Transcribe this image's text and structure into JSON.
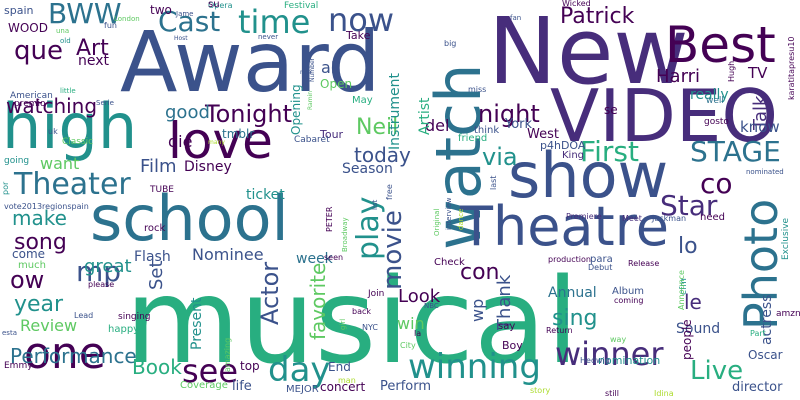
{
  "palette": {
    "dark_purple": "#440154",
    "indigo": "#472d7b",
    "blue": "#3b528b",
    "steel": "#2c728e",
    "teal": "#21918c",
    "green": "#28ae80",
    "light_green": "#5ec962",
    "lime": "#addc30",
    "yellow": "#fde725"
  },
  "words": [
    "Award",
    "New",
    "musical",
    "VIDEO",
    "show",
    "watch",
    "high",
    "love",
    "school",
    "Theatre",
    "Photo",
    "Best",
    "one",
    "Theater",
    "Cast",
    "time",
    "now",
    "winning",
    "winner",
    "Tonight",
    "day",
    "see",
    "Live",
    "STAGE",
    "First",
    "Star",
    "play",
    "movie",
    "Actor",
    "favorite",
    "Patrick",
    "Performance",
    "que",
    "BWW",
    "Art",
    "song",
    "make",
    "watching",
    "mp",
    "ow",
    "year",
    "via",
    "night",
    "Neil",
    "good",
    "today",
    "co",
    "Look",
    "Nominee",
    "Review",
    "Harri",
    "Talk",
    "Book",
    "Thank",
    "con",
    "sing",
    "Film",
    "Disney",
    "ticket",
    "Season",
    "die",
    "Set",
    "great",
    "want",
    "Present",
    "Flash",
    "week",
    "Annual",
    "lo",
    "le",
    "wp",
    "win",
    "Sound",
    "actress",
    "people",
    "director",
    "Oscar",
    "concert",
    "Perform",
    "End",
    "top",
    "life",
    "al",
    "Open",
    "Opening",
    "del",
    "Instrument",
    "York",
    "West",
    "Artist",
    "tmblr",
    "Tour",
    "Cabaret",
    "May",
    "TV",
    "know",
    "really",
    "next",
    "WOOD",
    "spain",
    "American",
    "premio",
    "Classic",
    "going",
    "vote2013regionspain",
    "rock",
    "come",
    "much",
    "please",
    "Lead",
    "singing",
    "happy",
    "Emmy",
    "Coverage",
    "MEJOR",
    "amazing",
    "man",
    "Boy",
    "Check",
    "Join",
    "NYC",
    "City",
    "la",
    "Album",
    "Debut",
    "Release",
    "Meet",
    "Jackman",
    "Premiere",
    "Return",
    "para",
    "production",
    "nomination",
    "story",
    "Idina",
    "still",
    "Hedwig",
    "way",
    "say",
    "need",
    "Exclusive",
    "amzn",
    "Part",
    "cfm",
    "Announce",
    "coming",
    "Hugh",
    "well",
    "gosto",
    "King",
    "p4hDOA",
    "think",
    "friend",
    "se",
    "fan",
    "Wicked",
    "big",
    "miss",
    "Festival",
    "Opera",
    "never",
    "Jame",
    "Host",
    "London",
    "fun",
    "una",
    "old",
    "uk",
    "Serie",
    "little",
    "TUBE",
    "por",
    "esta",
    "PETER",
    "Broadway",
    "free",
    "dance",
    "last",
    "list",
    "interview",
    "nominated",
    "karatitapresu10",
    "two",
    "Take",
    "su",
    "many",
    "nda",
    "girl",
    "back",
    "NBC",
    "seen",
    "Original",
    "Number",
    "Ramin"
  ]
}
